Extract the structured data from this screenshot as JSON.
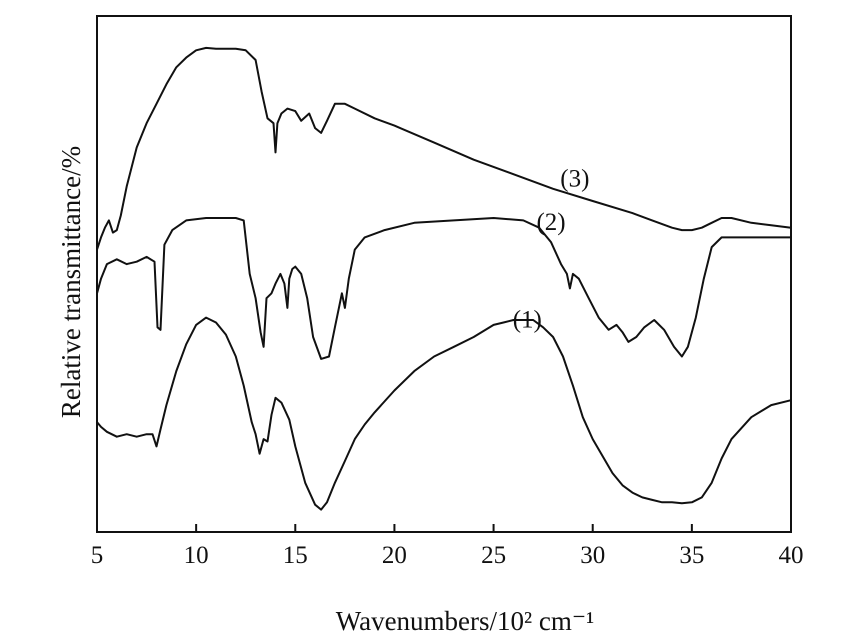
{
  "chart_data": {
    "type": "line",
    "title": "",
    "xlabel": "Wavenumbers/10² cm⁻¹",
    "ylabel": "Relative transmittance/%",
    "xlim": [
      5,
      40
    ],
    "ylim": [
      0,
      100
    ],
    "x_ticks": [
      5,
      10,
      15,
      20,
      25,
      30,
      35,
      40
    ],
    "x_tick_labels": [
      "5",
      "10",
      "15",
      "20",
      "25",
      "30",
      "35",
      "40"
    ],
    "y_ticks_shown": false,
    "grid": false,
    "legend": "none",
    "line_color": "#111111",
    "series": [
      {
        "name": "(3)",
        "label_at": [
          29.1,
          67
        ],
        "x": [
          5.0,
          5.2,
          5.4,
          5.6,
          5.8,
          6.0,
          6.2,
          6.5,
          7.0,
          7.5,
          8.0,
          8.5,
          9.0,
          9.5,
          10.0,
          10.5,
          11.0,
          11.5,
          12.0,
          12.5,
          13.0,
          13.3,
          13.6,
          13.9,
          14.0,
          14.1,
          14.3,
          14.6,
          15.0,
          15.3,
          15.7,
          16.0,
          16.3,
          16.6,
          17.0,
          17.5,
          18.0,
          19.0,
          20.0,
          22.0,
          24.0,
          26.0,
          28.0,
          30.0,
          32.0,
          33.0,
          34.0,
          34.5,
          35.0,
          35.5,
          36.0,
          36.5,
          37.0,
          38.0,
          39.0,
          40.0
        ],
        "y": [
          54.0,
          56.5,
          58.5,
          60.0,
          57.5,
          58.0,
          61.0,
          67.0,
          75.0,
          80.0,
          84.0,
          88.0,
          91.5,
          93.5,
          95.0,
          95.5,
          95.3,
          95.3,
          95.3,
          95.0,
          93.0,
          86.5,
          81.0,
          80.0,
          74.0,
          80.0,
          82.0,
          83.0,
          82.5,
          80.5,
          82.0,
          79.0,
          78.0,
          80.5,
          84.0,
          84.0,
          83.0,
          81.0,
          79.5,
          76.0,
          72.5,
          69.5,
          66.5,
          64.0,
          61.5,
          60.0,
          58.5,
          58.0,
          58.0,
          58.5,
          59.5,
          60.5,
          60.5,
          59.5,
          59.0,
          58.5
        ]
      },
      {
        "name": "(2)",
        "label_at": [
          27.9,
          58
        ],
        "x": [
          5.0,
          5.2,
          5.5,
          6.0,
          6.5,
          7.0,
          7.5,
          7.9,
          8.05,
          8.2,
          8.4,
          8.8,
          9.5,
          10.5,
          11.5,
          12.0,
          12.4,
          12.7,
          13.0,
          13.25,
          13.4,
          13.55,
          13.8,
          14.0,
          14.25,
          14.45,
          14.6,
          14.7,
          14.85,
          15.0,
          15.3,
          15.6,
          15.9,
          16.3,
          16.7,
          17.0,
          17.2,
          17.35,
          17.5,
          17.7,
          18.0,
          18.5,
          19.5,
          21.0,
          23.0,
          25.0,
          26.5,
          27.3,
          27.9,
          28.4,
          28.7,
          28.85,
          29.0,
          29.3,
          29.8,
          30.3,
          30.8,
          31.2,
          31.5,
          31.8,
          32.2,
          32.6,
          33.1,
          33.6,
          34.1,
          34.5,
          34.8,
          35.2,
          35.6,
          36.0,
          36.5,
          37.0,
          38.0,
          39.0,
          40.0
        ],
        "y": [
          45.0,
          48.0,
          51.0,
          52.0,
          51.0,
          51.5,
          52.5,
          51.5,
          38.0,
          37.5,
          55.0,
          58.0,
          60.0,
          60.5,
          60.5,
          60.5,
          60.0,
          49.0,
          44.0,
          37.0,
          34.0,
          44.0,
          45.0,
          47.0,
          49.0,
          47.0,
          42.0,
          48.0,
          50.0,
          50.5,
          49.0,
          44.0,
          36.0,
          31.5,
          32.0,
          38.0,
          42.0,
          45.0,
          42.0,
          48.0,
          54.0,
          56.5,
          58.0,
          59.5,
          60.0,
          60.5,
          60.0,
          58.5,
          55.5,
          51.0,
          49.0,
          46.0,
          49.0,
          48.0,
          44.0,
          40.0,
          37.5,
          38.5,
          37.0,
          35.0,
          36.0,
          38.0,
          39.5,
          37.5,
          34.0,
          32.0,
          34.0,
          40.0,
          48.0,
          54.5,
          56.5,
          56.5,
          56.5,
          56.5,
          56.5
        ]
      },
      {
        "name": "(1)",
        "label_at": [
          26.7,
          38
        ],
        "x": [
          5.0,
          5.2,
          5.5,
          6.0,
          6.5,
          7.0,
          7.5,
          7.8,
          8.0,
          8.2,
          8.5,
          9.0,
          9.5,
          10.0,
          10.5,
          11.0,
          11.5,
          12.0,
          12.4,
          12.8,
          13.0,
          13.2,
          13.4,
          13.6,
          13.8,
          14.0,
          14.3,
          14.7,
          15.0,
          15.5,
          16.0,
          16.3,
          16.6,
          17.0,
          17.5,
          18.0,
          18.5,
          19.0,
          20.0,
          21.0,
          22.0,
          23.0,
          24.0,
          25.0,
          25.5,
          26.0,
          26.5,
          27.0,
          27.5,
          28.0,
          28.5,
          29.0,
          29.5,
          30.0,
          30.5,
          31.0,
          31.5,
          32.0,
          32.5,
          33.0,
          33.5,
          34.0,
          34.5,
          35.0,
          35.5,
          36.0,
          36.5,
          37.0,
          38.0,
          39.0,
          40.0
        ],
        "y": [
          18.5,
          17.5,
          16.5,
          15.5,
          16.0,
          15.5,
          16.0,
          16.0,
          13.5,
          17.0,
          22.0,
          29.0,
          34.5,
          38.5,
          40.0,
          39.0,
          36.5,
          32.0,
          26.0,
          18.5,
          16.0,
          12.0,
          15.0,
          14.5,
          20.0,
          23.5,
          22.5,
          19.0,
          13.5,
          6.0,
          1.5,
          0.5,
          2.0,
          6.0,
          10.5,
          15.0,
          18.0,
          20.5,
          25.0,
          29.0,
          32.0,
          34.0,
          36.0,
          38.5,
          39.0,
          39.5,
          39.5,
          39.5,
          38.0,
          36.0,
          32.0,
          26.0,
          19.5,
          15.0,
          11.5,
          8.0,
          5.5,
          4.0,
          3.0,
          2.5,
          2.0,
          2.0,
          1.8,
          2.0,
          3.0,
          6.0,
          11.0,
          15.0,
          19.5,
          22.0,
          23.0
        ]
      }
    ]
  }
}
